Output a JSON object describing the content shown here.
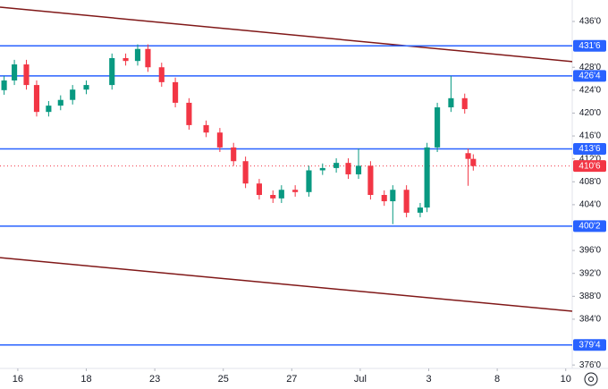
{
  "chart_data": {
    "type": "candlestick",
    "xlim": [
      -0.52,
      16.19
    ],
    "ylim": [
      375.4,
      439.75
    ],
    "xticks": [
      {
        "value": 0,
        "label": "16"
      },
      {
        "value": 2,
        "label": "18"
      },
      {
        "value": 4,
        "label": "23"
      },
      {
        "value": 6,
        "label": "25"
      },
      {
        "value": 8,
        "label": "27"
      },
      {
        "value": 10,
        "label": "Jul"
      },
      {
        "value": 12,
        "label": "3"
      },
      {
        "value": 14,
        "label": "8"
      },
      {
        "value": 16,
        "label": "10"
      }
    ],
    "yticks": [
      {
        "value": 436,
        "label": "436'0"
      },
      {
        "value": 428,
        "label": "428'0"
      },
      {
        "value": 424,
        "label": "424'0"
      },
      {
        "value": 420,
        "label": "420'0"
      },
      {
        "value": 416,
        "label": "416'0"
      },
      {
        "value": 412,
        "label": "412'0"
      },
      {
        "value": 408,
        "label": "408'0"
      },
      {
        "value": 404,
        "label": "404'0"
      },
      {
        "value": 396,
        "label": "396'0"
      },
      {
        "value": 392,
        "label": "392'0"
      },
      {
        "value": 388,
        "label": "388'0"
      },
      {
        "value": 384,
        "label": "384'0"
      },
      {
        "value": 376,
        "label": "376'0"
      }
    ],
    "up_color": "#089981",
    "down_color": "#f23645",
    "x": [
      -0.4,
      -0.1,
      0.25,
      0.55,
      0.9,
      1.25,
      1.6,
      2.0,
      2.75,
      3.15,
      3.5,
      3.8,
      4.2,
      4.6,
      5.0,
      5.5,
      5.9,
      6.3,
      6.65,
      7.05,
      7.45,
      7.7,
      8.1,
      8.5,
      8.9,
      9.3,
      9.65,
      9.95,
      10.3,
      10.7,
      10.95,
      11.35,
      11.75,
      11.95,
      12.25,
      12.65,
      13.05,
      13.15,
      13.3
    ],
    "open": [
      424,
      425.7,
      428.5,
      424.9,
      420.2,
      421.3,
      422.3,
      424.1,
      424.9,
      429.6,
      429.1,
      431.2,
      428,
      425.4,
      421.8,
      417.9,
      416.6,
      414,
      411.6,
      407.7,
      405.7,
      405.1,
      406.6,
      406.2,
      410,
      410.4,
      411.3,
      409.3,
      410.8,
      405.7,
      404.6,
      406.6,
      402.6,
      403.5,
      414,
      421,
      422.6,
      413,
      412
    ],
    "high": [
      426.5,
      429.3,
      429.3,
      425.7,
      422.1,
      423.1,
      424.9,
      425.7,
      430.4,
      430.4,
      432,
      432,
      428.8,
      426.2,
      422.6,
      418.7,
      417.4,
      414.8,
      412.4,
      408.5,
      406.5,
      407.4,
      407.4,
      410.8,
      411.2,
      412.1,
      412.1,
      413.8,
      411.6,
      406.5,
      407.4,
      407.4,
      404.3,
      414.8,
      421.8,
      426.5,
      423.4,
      413.8,
      412.8
    ],
    "low": [
      423.2,
      424.9,
      424.1,
      419.4,
      419.4,
      420.5,
      421.5,
      423.3,
      424.1,
      428.3,
      428.3,
      427.2,
      424.6,
      421,
      417.1,
      415.8,
      413.2,
      410.8,
      406.9,
      404.9,
      404.3,
      404.3,
      405.4,
      405.4,
      409.2,
      409.6,
      408.5,
      408.5,
      404.9,
      403.8,
      400.6,
      401.8,
      401.8,
      402.7,
      413.2,
      420.2,
      419.9,
      407.3,
      409.95
    ],
    "close": [
      425.7,
      428.5,
      424.9,
      420.2,
      421.3,
      422.3,
      424.1,
      424.9,
      429.6,
      429.1,
      431.2,
      428,
      425.4,
      421.8,
      417.9,
      416.6,
      414,
      411.6,
      407.7,
      405.7,
      405.1,
      406.6,
      406.2,
      410,
      410.4,
      411.3,
      409.3,
      410.8,
      405.7,
      404.6,
      406.6,
      402.6,
      403.5,
      414,
      421,
      422.6,
      420.7,
      412,
      410.75
    ],
    "levels": [
      {
        "value": 431.75,
        "label": "431'6",
        "color": "#2962ff"
      },
      {
        "value": 426.5,
        "label": "426'4",
        "color": "#2962ff"
      },
      {
        "value": 413.75,
        "label": "413'6",
        "color": "#2962ff"
      },
      {
        "value": 400.25,
        "label": "400'2",
        "color": "#2962ff"
      },
      {
        "value": 379.5,
        "label": "379'4",
        "color": "#2962ff"
      }
    ],
    "last_price": {
      "value": 410.75,
      "label": "410'6",
      "color": "#f23645"
    },
    "trend_lines": [
      {
        "x": [
          -0.52,
          16.19
        ],
        "y": [
          438.5,
          429
        ],
        "color": "#801818"
      },
      {
        "x": [
          -0.52,
          16.19
        ],
        "y": [
          394.75,
          385.4
        ],
        "color": "#801818"
      }
    ]
  }
}
